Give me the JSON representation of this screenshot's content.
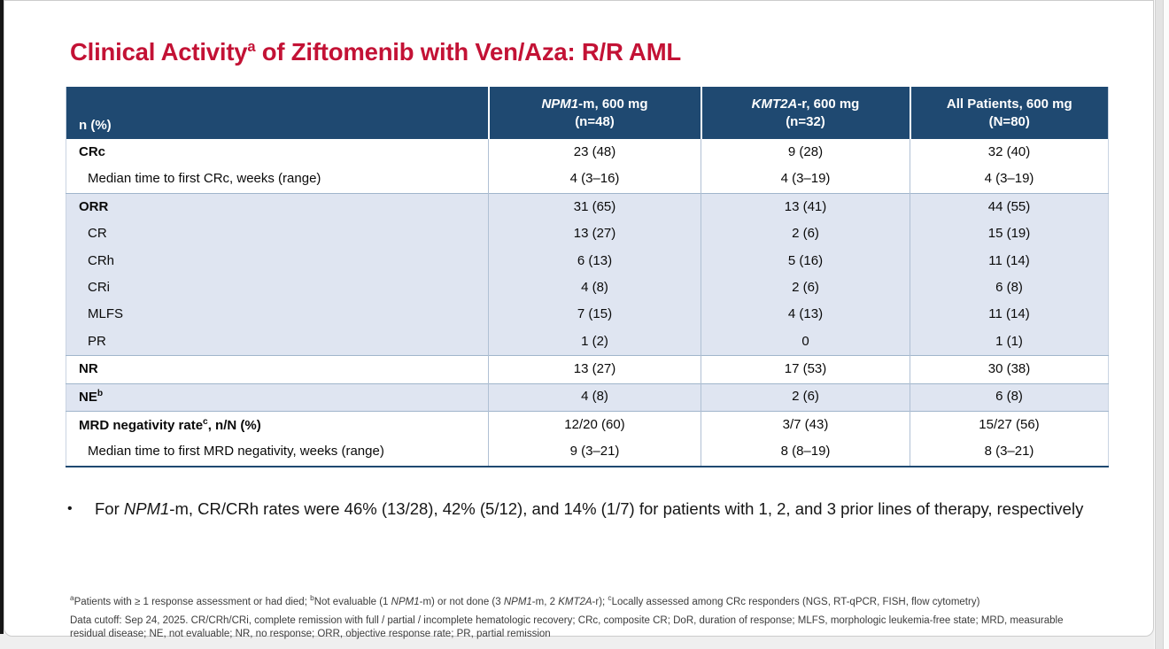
{
  "slide": {
    "title_segments": [
      {
        "t": "Clinical Activity"
      },
      {
        "t": "a",
        "sup": true
      },
      {
        "t": " of Ziftomenib with Ven/Aza: R/R AML"
      }
    ]
  },
  "colors": {
    "title_red": "#c31235",
    "header_blue": "#1f4971",
    "row_blue": "#dfe5f1"
  },
  "table": {
    "header": {
      "row_label": "n (%)",
      "columns": [
        {
          "line1": [
            {
              "t": "NPM1",
              "i": true
            },
            {
              "t": "-m, 600 mg"
            }
          ],
          "line2": "(n=48)"
        },
        {
          "line1": [
            {
              "t": "KMT2A",
              "i": true
            },
            {
              "t": "-r, 600 mg"
            }
          ],
          "line2": "(n=32)"
        },
        {
          "line1": [
            {
              "t": "All Patients, 600 mg"
            }
          ],
          "line2": "(N=80)"
        }
      ]
    },
    "rows": [
      {
        "label": [
          {
            "t": "CRc"
          }
        ],
        "bold": true,
        "indent": false,
        "shade": "white",
        "sep": false,
        "values": [
          "23 (48)",
          "9 (28)",
          "32 (40)"
        ]
      },
      {
        "label": [
          {
            "t": "Median time to first CRc, weeks (range)"
          }
        ],
        "bold": false,
        "indent": true,
        "shade": "white",
        "sep": false,
        "values": [
          "4 (3–16)",
          "4 (3–19)",
          "4 (3–19)"
        ]
      },
      {
        "label": [
          {
            "t": "ORR"
          }
        ],
        "bold": true,
        "indent": false,
        "shade": "blue",
        "sep": true,
        "values": [
          "31 (65)",
          "13 (41)",
          "44 (55)"
        ]
      },
      {
        "label": [
          {
            "t": "CR"
          }
        ],
        "bold": false,
        "indent": true,
        "shade": "blue",
        "sep": false,
        "values": [
          "13 (27)",
          "2 (6)",
          "15 (19)"
        ]
      },
      {
        "label": [
          {
            "t": "CRh"
          }
        ],
        "bold": false,
        "indent": true,
        "shade": "blue",
        "sep": false,
        "values": [
          "6 (13)",
          "5 (16)",
          "11 (14)"
        ]
      },
      {
        "label": [
          {
            "t": "CRi"
          }
        ],
        "bold": false,
        "indent": true,
        "shade": "blue",
        "sep": false,
        "values": [
          "4 (8)",
          "2 (6)",
          "6 (8)"
        ]
      },
      {
        "label": [
          {
            "t": "MLFS"
          }
        ],
        "bold": false,
        "indent": true,
        "shade": "blue",
        "sep": false,
        "values": [
          "7 (15)",
          "4 (13)",
          "11 (14)"
        ]
      },
      {
        "label": [
          {
            "t": "PR"
          }
        ],
        "bold": false,
        "indent": true,
        "shade": "blue",
        "sep": false,
        "values": [
          "1 (2)",
          "0",
          "1 (1)"
        ]
      },
      {
        "label": [
          {
            "t": "NR"
          }
        ],
        "bold": true,
        "indent": false,
        "shade": "white",
        "sep": true,
        "values": [
          "13 (27)",
          "17 (53)",
          "30 (38)"
        ]
      },
      {
        "label": [
          {
            "t": "NE"
          },
          {
            "t": "b",
            "sup": true
          }
        ],
        "bold": true,
        "indent": false,
        "shade": "blue",
        "sep": true,
        "values": [
          "4 (8)",
          "2 (6)",
          "6 (8)"
        ]
      },
      {
        "label": [
          {
            "t": "MRD negativity rate"
          },
          {
            "t": "c",
            "sup": true
          },
          {
            "t": ", n/N (%)"
          }
        ],
        "bold": true,
        "indent": false,
        "shade": "white",
        "sep": true,
        "values": [
          "12/20 (60)",
          "3/7 (43)",
          "15/27 (56)"
        ]
      },
      {
        "label": [
          {
            "t": "Median time to first MRD negativity, weeks (range)"
          }
        ],
        "bold": false,
        "indent": true,
        "shade": "white",
        "sep": false,
        "values": [
          "9 (3–21)",
          "8 (8–19)",
          "8 (3–21)"
        ]
      }
    ]
  },
  "bullet": {
    "marker": "•",
    "segments": [
      {
        "t": "For "
      },
      {
        "t": "NPM1",
        "i": true
      },
      {
        "t": "-m, CR/CRh rates were 46% (13/28), 42% (5/12), and 14% (1/7) for patients with 1, 2, and 3 prior lines of therapy, respectively"
      }
    ]
  },
  "footnotes": {
    "line1_segments": [
      {
        "t": "a",
        "sup": true
      },
      {
        "t": "Patients with ≥ 1 response assessment or had died; "
      },
      {
        "t": "b",
        "sup": true
      },
      {
        "t": "Not evaluable (1 "
      },
      {
        "t": "NPM1",
        "i": true
      },
      {
        "t": "-m) or not done (3 "
      },
      {
        "t": "NPM1",
        "i": true
      },
      {
        "t": "-m, 2 "
      },
      {
        "t": "KMT2A",
        "i": true
      },
      {
        "t": "-r); "
      },
      {
        "t": "c",
        "sup": true
      },
      {
        "t": "Locally assessed among CRc responders (NGS, RT-qPCR, FISH, flow cytometry)"
      }
    ],
    "line2": "Data cutoff: Sep 24, 2025. CR/CRh/CRi, complete remission with full / partial / incomplete hematologic recovery; CRc, composite CR; DoR, duration of response; MLFS, morphologic leukemia-free state; MRD, measurable residual disease; NE, not evaluable; NR, no response; ORR, objective response rate; PR, partial remission"
  }
}
